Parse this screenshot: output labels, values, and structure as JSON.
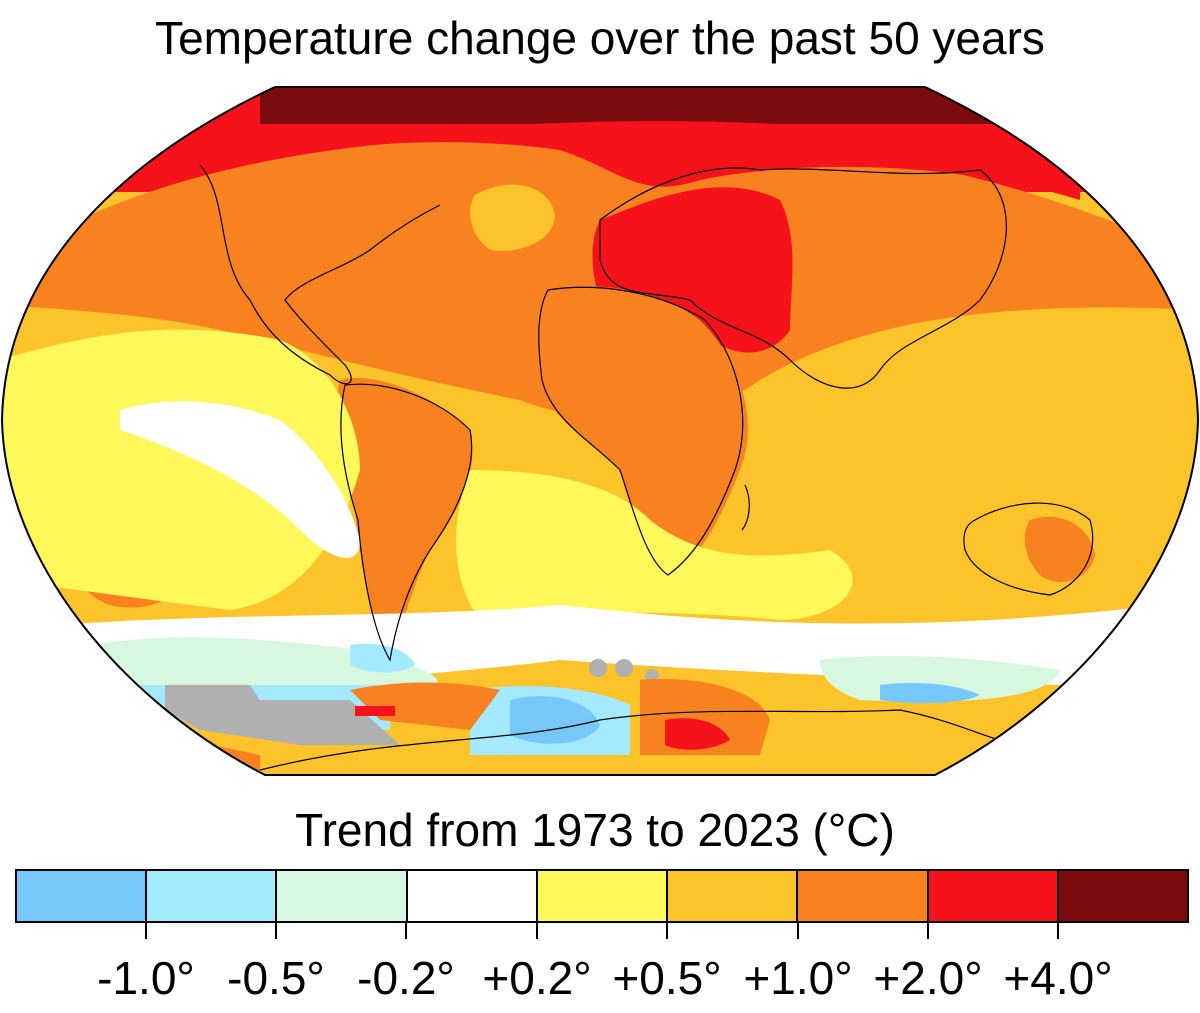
{
  "title": "Temperature change over the past 50 years",
  "legend": {
    "title": "Trend from 1973 to 2023 (°C)",
    "bins": [
      {
        "color": "#77c8fa"
      },
      {
        "color": "#a3e9ff"
      },
      {
        "color": "#d7f8de"
      },
      {
        "color": "#ffffff"
      },
      {
        "color": "#fff85a"
      },
      {
        "color": "#fdc32b"
      },
      {
        "color": "#f7821f"
      },
      {
        "color": "#f5121b"
      },
      {
        "color": "#7b0a0c"
      }
    ],
    "tick_labels": [
      "-1.0°",
      "-0.5°",
      "-0.2°",
      "+0.2°",
      "+0.5°",
      "+1.0°",
      "+2.0°",
      "+4.0°"
    ]
  },
  "map": {
    "projection": "Robinson",
    "no_data_color": "#b0b0b0",
    "coastline_color": "#000000"
  }
}
